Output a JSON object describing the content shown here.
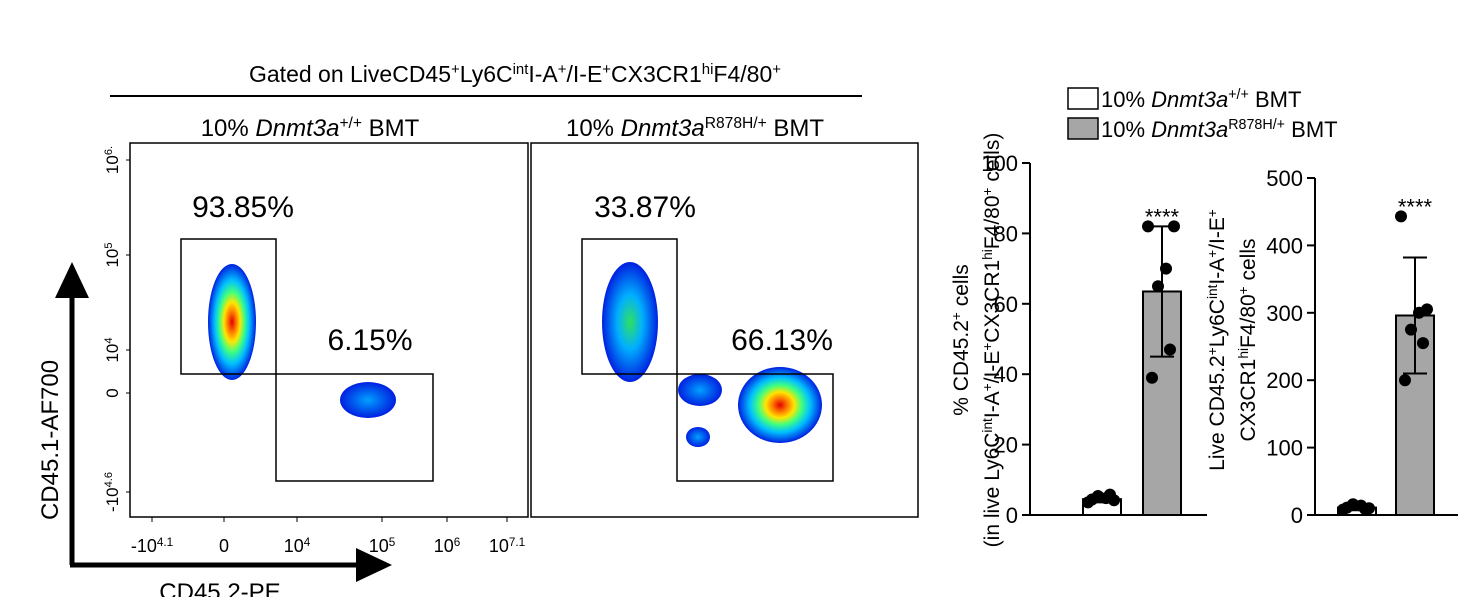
{
  "flow": {
    "header": [
      {
        "t": "Gated on LiveCD45"
      },
      {
        "t": "+",
        "s": "sup"
      },
      {
        "t": "Ly6C"
      },
      {
        "t": "int",
        "s": "sup"
      },
      {
        "t": "I-A"
      },
      {
        "t": "+",
        "s": "sup"
      },
      {
        "t": "/I-E"
      },
      {
        "t": "+",
        "s": "sup"
      },
      {
        "t": "CX3CR1"
      },
      {
        "t": "hi",
        "s": "sup"
      },
      {
        "t": "F4/80"
      },
      {
        "t": "+",
        "s": "sup"
      }
    ],
    "panels": [
      {
        "title": [
          {
            "t": "10% "
          },
          {
            "t": "Dnmt3a",
            "s": "i"
          },
          {
            "t": "+/+",
            "s": "sup"
          },
          {
            "t": " BMT"
          }
        ],
        "gates": [
          "93.85%",
          "6.15%"
        ]
      },
      {
        "title": [
          {
            "t": "10% "
          },
          {
            "t": "Dnmt3a",
            "s": "i"
          },
          {
            "t": "R878H/+",
            "s": "sup"
          },
          {
            "t": " BMT"
          }
        ],
        "gates": [
          "33.87%",
          "66.13%"
        ]
      }
    ],
    "yticks": [
      [
        {
          "t": "10"
        },
        {
          "t": "6.",
          "s": "sup"
        }
      ],
      [
        {
          "t": "10"
        },
        {
          "t": "5",
          "s": "sup"
        }
      ],
      [
        {
          "t": "10"
        },
        {
          "t": "4",
          "s": "sup"
        }
      ],
      [
        {
          "t": "0"
        }
      ],
      [
        {
          "t": "-10"
        },
        {
          "t": "4.6",
          "s": "sup"
        }
      ]
    ],
    "xticks": [
      [
        {
          "t": "-10"
        },
        {
          "t": "4.1",
          "s": "sup"
        }
      ],
      [
        {
          "t": "0"
        }
      ],
      [
        {
          "t": "10"
        },
        {
          "t": "4",
          "s": "sup"
        }
      ],
      [
        {
          "t": "10"
        },
        {
          "t": "5",
          "s": "sup"
        }
      ],
      [
        {
          "t": "10"
        },
        {
          "t": "6",
          "s": "sup"
        }
      ],
      [
        {
          "t": "10"
        },
        {
          "t": "7.1",
          "s": "sup"
        }
      ]
    ],
    "ylabel": "CD45.1-AF700",
    "xlabel": "CD45.2-PE"
  },
  "legend": [
    [
      {
        "t": "10% "
      },
      {
        "t": "Dnmt3a",
        "s": "i"
      },
      {
        "t": "+/+",
        "s": "sup"
      },
      {
        "t": " BMT"
      }
    ],
    [
      {
        "t": "10% "
      },
      {
        "t": "Dnmt3a",
        "s": "i"
      },
      {
        "t": "R878H/+",
        "s": "sup"
      },
      {
        "t": " BMT"
      }
    ]
  ],
  "chart_data": [
    {
      "type": "bar",
      "ylabel": [
        [
          {
            "t": "% CD45.2"
          },
          {
            "t": "+",
            "s": "sup"
          },
          {
            "t": " cells"
          }
        ],
        [
          {
            "t": "(in live Ly6C"
          },
          {
            "t": "int",
            "s": "sup"
          },
          {
            "t": "I-A"
          },
          {
            "t": "+",
            "s": "sup"
          },
          {
            "t": "/I-E"
          },
          {
            "t": "+",
            "s": "sup"
          },
          {
            "t": "CX3CR1"
          },
          {
            "t": "hi",
            "s": "sup"
          },
          {
            "t": "F4/80"
          },
          {
            "t": "+",
            "s": "sup"
          },
          {
            "t": " cells)"
          }
        ]
      ],
      "ylim": [
        0,
        100
      ],
      "yticks": [
        0,
        20,
        40,
        60,
        80,
        100
      ],
      "annotation": "****",
      "series": [
        {
          "color": "#ffffff",
          "values": [
            4.5
          ],
          "errors": [
            0.9
          ],
          "points": [
            3.6,
            4.2,
            4.8,
            5.4,
            5.8,
            4.4
          ]
        },
        {
          "color": "#a6a6a6",
          "values": [
            63.5
          ],
          "errors": [
            18.5
          ],
          "points": [
            82,
            82,
            70,
            65,
            47,
            39
          ]
        }
      ]
    },
    {
      "type": "bar",
      "ylabel": [
        [
          {
            "t": "Live CD45.2"
          },
          {
            "t": "+",
            "s": "sup"
          },
          {
            "t": "Ly6C"
          },
          {
            "t": "int",
            "s": "sup"
          },
          {
            "t": "I-A"
          },
          {
            "t": "+",
            "s": "sup"
          },
          {
            "t": "/I-E"
          },
          {
            "t": "+",
            "s": "sup"
          }
        ],
        [
          {
            "t": "CX3CR1"
          },
          {
            "t": "hi",
            "s": "sup"
          },
          {
            "t": "F4/80"
          },
          {
            "t": "+",
            "s": "sup"
          },
          {
            "t": " cells"
          }
        ]
      ],
      "ylim": [
        0,
        500
      ],
      "yticks": [
        0,
        100,
        200,
        300,
        400,
        500
      ],
      "annotation": "****",
      "series": [
        {
          "color": "#ffffff",
          "values": [
            11
          ],
          "errors": [
            4
          ],
          "points": [
            8,
            10,
            14,
            16,
            9,
            11
          ]
        },
        {
          "color": "#a6a6a6",
          "values": [
            296
          ],
          "errors": [
            86
          ],
          "points": [
            443,
            305,
            300,
            275,
            255,
            200
          ]
        }
      ]
    }
  ]
}
